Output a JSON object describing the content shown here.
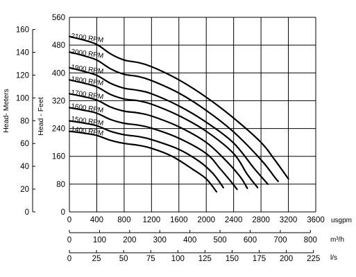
{
  "chart_data": {
    "type": "line",
    "title": "",
    "x_axes": [
      {
        "label": "usgpm",
        "ticks": [
          "0",
          "400",
          "800",
          "1200",
          "1600",
          "2000",
          "2400",
          "2800",
          "3200",
          "3600"
        ],
        "range": [
          0,
          3600
        ]
      },
      {
        "label": "m³/h",
        "ticks": [
          "0",
          "100",
          "200",
          "300",
          "400",
          "500",
          "600",
          "700",
          "800"
        ],
        "range": [
          0,
          800
        ]
      },
      {
        "label": "l/s",
        "ticks": [
          "0",
          "25",
          "50",
          "75",
          "100",
          "125",
          "150",
          "175",
          "200",
          "225"
        ],
        "range": [
          0,
          225
        ]
      }
    ],
    "y_axes": [
      {
        "label": "Head- Meters",
        "ticks": [
          "0",
          "20",
          "40",
          "60",
          "80",
          "100",
          "120",
          "140",
          "160"
        ],
        "range": [
          0,
          170.7
        ]
      },
      {
        "label": "Head - Feet",
        "ticks": [
          "0",
          "80",
          "160",
          "240",
          "320",
          "400",
          "480",
          "560"
        ],
        "range": [
          0,
          560
        ]
      }
    ],
    "grid": true,
    "series": [
      {
        "name": "2100 RPM",
        "x": [
          0,
          200,
          400,
          600,
          800,
          1000,
          1200,
          1600,
          2000,
          2400,
          2800,
          3000,
          3200
        ],
        "y": [
          505,
          495,
          482,
          455,
          437,
          430,
          418,
          380,
          330,
          270,
          200,
          150,
          95
        ]
      },
      {
        "name": "2000 RPM",
        "x": [
          0,
          200,
          400,
          600,
          800,
          1000,
          1200,
          1600,
          2000,
          2400,
          2800,
          3000,
          3050
        ],
        "y": [
          460,
          450,
          437,
          412,
          396,
          390,
          378,
          342,
          292,
          230,
          150,
          100,
          88
        ]
      },
      {
        "name": "1900 RPM",
        "x": [
          0,
          200,
          400,
          600,
          800,
          1000,
          1200,
          1600,
          2000,
          2400,
          2700,
          2900
        ],
        "y": [
          415,
          405,
          393,
          370,
          356,
          350,
          340,
          305,
          258,
          198,
          125,
          80
        ]
      },
      {
        "name": "1800 RPM",
        "x": [
          0,
          200,
          400,
          600,
          800,
          1000,
          1200,
          1600,
          2000,
          2400,
          2600,
          2750
        ],
        "y": [
          380,
          371,
          360,
          338,
          325,
          320,
          310,
          277,
          232,
          168,
          108,
          70
        ]
      },
      {
        "name": "1700 RPM",
        "x": [
          0,
          200,
          400,
          600,
          800,
          1000,
          1200,
          1600,
          2000,
          2300,
          2500,
          2600
        ],
        "y": [
          340,
          332,
          322,
          302,
          290,
          285,
          276,
          245,
          200,
          145,
          100,
          68
        ]
      },
      {
        "name": "1600 RPM",
        "x": [
          0,
          200,
          400,
          600,
          800,
          1000,
          1200,
          1600,
          2000,
          2200,
          2350,
          2450
        ],
        "y": [
          300,
          293,
          284,
          266,
          255,
          250,
          241,
          212,
          168,
          125,
          90,
          65
        ]
      },
      {
        "name": "1500 RPM",
        "x": [
          0,
          200,
          400,
          600,
          800,
          1000,
          1200,
          1600,
          1900,
          2100,
          2250
        ],
        "y": [
          262,
          256,
          248,
          232,
          222,
          217,
          208,
          180,
          145,
          110,
          70
        ]
      },
      {
        "name": "1400 RPM",
        "x": [
          0,
          200,
          400,
          600,
          800,
          1000,
          1200,
          1500,
          1800,
          2000,
          2150
        ],
        "y": [
          232,
          227,
          220,
          206,
          197,
          192,
          183,
          160,
          123,
          95,
          58
        ]
      }
    ]
  }
}
